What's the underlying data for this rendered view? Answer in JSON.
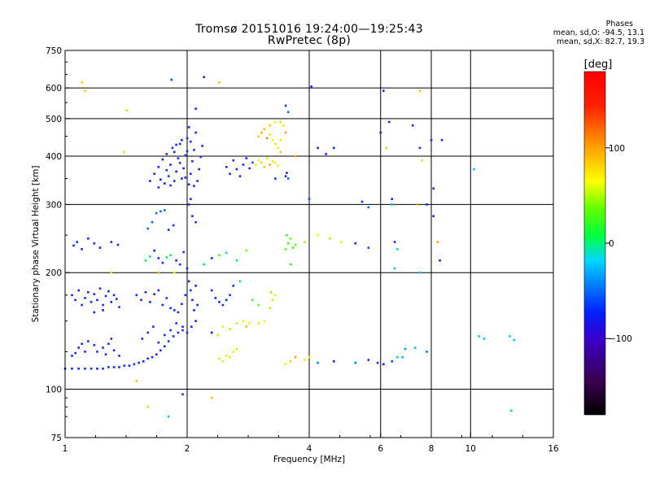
{
  "header": {
    "title_line1": "Tromsø 20151016 19:24:00—19:25:43",
    "title_line2": "RwPretec (8p)"
  },
  "phases_box": {
    "title": "Phases",
    "line_o": "mean, sd,O: -94.5, 13.1",
    "line_x": "mean, sd,X:  82.7, 19.3"
  },
  "colorbar": {
    "unit_label": "[deg]",
    "ticks": [
      {
        "value": 100,
        "label": "100"
      },
      {
        "value": 0,
        "label": "0"
      },
      {
        "value": -100,
        "label": "−100"
      }
    ],
    "range": [
      -180,
      180
    ]
  },
  "chart_data": {
    "type": "scatter",
    "title": "Tromsø 20151016 19:24:00—19:25:43",
    "subtitle": "RwPretec (8p)",
    "xlabel": "Frequency [MHz]",
    "ylabel": "Stationary phase Virtual Height [km]",
    "x_scale": "log2",
    "y_scale": "log",
    "xlim": [
      1,
      16
    ],
    "ylim": [
      75,
      750
    ],
    "grid": true,
    "x_ticks": [
      {
        "v": 1,
        "label": "1"
      },
      {
        "v": 2,
        "label": "2"
      },
      {
        "v": 4,
        "label": "4"
      },
      {
        "v": 6,
        "label": "6"
      },
      {
        "v": 8,
        "label": "8"
      },
      {
        "v": 10,
        "label": "10"
      },
      {
        "v": 16,
        "label": "16"
      }
    ],
    "x_grid": [
      2,
      4,
      6,
      8,
      10
    ],
    "y_ticks": [
      {
        "v": 75,
        "label": "75"
      },
      {
        "v": 100,
        "label": "100"
      },
      {
        "v": 200,
        "label": "200"
      },
      {
        "v": 300,
        "label": "300"
      },
      {
        "v": 400,
        "label": "400"
      },
      {
        "v": 500,
        "label": "500"
      },
      {
        "v": 600,
        "label": "600"
      },
      {
        "v": 750,
        "label": "750"
      }
    ],
    "y_grid": [
      100,
      200,
      300,
      400,
      500,
      600
    ],
    "color_by": "phase [deg]",
    "points": [
      [
        1.0,
        113,
        -100
      ],
      [
        1.04,
        113,
        -100
      ],
      [
        1.08,
        113,
        -100
      ],
      [
        1.12,
        113,
        -100
      ],
      [
        1.16,
        113,
        -100
      ],
      [
        1.2,
        113,
        -100
      ],
      [
        1.24,
        113,
        -100
      ],
      [
        1.28,
        114,
        -100
      ],
      [
        1.32,
        114,
        -100
      ],
      [
        1.36,
        114,
        -100
      ],
      [
        1.4,
        115,
        -100
      ],
      [
        1.44,
        115,
        -100
      ],
      [
        1.48,
        116,
        -100
      ],
      [
        1.52,
        117,
        -100
      ],
      [
        1.56,
        118,
        -100
      ],
      [
        1.6,
        120,
        -100
      ],
      [
        1.64,
        121,
        -100
      ],
      [
        1.68,
        123,
        -100
      ],
      [
        1.72,
        126,
        -100
      ],
      [
        1.76,
        129,
        -100
      ],
      [
        1.8,
        133,
        -100
      ],
      [
        1.85,
        137,
        -100
      ],
      [
        1.9,
        140,
        -100
      ],
      [
        1.95,
        142,
        -100
      ],
      [
        1.04,
        122,
        -100
      ],
      [
        1.06,
        124,
        -100
      ],
      [
        1.08,
        128,
        -100
      ],
      [
        1.1,
        131,
        -100
      ],
      [
        1.12,
        125,
        -100
      ],
      [
        1.14,
        133,
        -100
      ],
      [
        1.18,
        130,
        -100
      ],
      [
        1.2,
        125,
        -100
      ],
      [
        1.24,
        128,
        -100
      ],
      [
        1.26,
        123,
        -100
      ],
      [
        1.28,
        131,
        -100
      ],
      [
        1.32,
        126,
        -100
      ],
      [
        1.3,
        135,
        -95
      ],
      [
        1.36,
        122,
        -100
      ],
      [
        1.04,
        175,
        -100
      ],
      [
        1.06,
        170,
        -100
      ],
      [
        1.08,
        180,
        -100
      ],
      [
        1.1,
        165,
        -100
      ],
      [
        1.12,
        172,
        -100
      ],
      [
        1.14,
        178,
        -100
      ],
      [
        1.16,
        168,
        -100
      ],
      [
        1.18,
        176,
        -100
      ],
      [
        1.2,
        170,
        -100
      ],
      [
        1.22,
        182,
        -100
      ],
      [
        1.24,
        165,
        -100
      ],
      [
        1.26,
        174,
        -100
      ],
      [
        1.28,
        179,
        -100
      ],
      [
        1.3,
        168,
        -100
      ],
      [
        1.32,
        175,
        -100
      ],
      [
        1.34,
        171,
        -100
      ],
      [
        1.36,
        163,
        -100
      ],
      [
        1.18,
        158,
        -100
      ],
      [
        1.24,
        160,
        -110
      ],
      [
        1.05,
        235,
        -100
      ],
      [
        1.07,
        240,
        -100
      ],
      [
        1.1,
        230,
        -100
      ],
      [
        1.14,
        245,
        -100
      ],
      [
        1.18,
        238,
        -100
      ],
      [
        1.22,
        232,
        -100
      ],
      [
        1.3,
        240,
        -100
      ],
      [
        1.35,
        236,
        -100
      ],
      [
        1.5,
        175,
        -100
      ],
      [
        1.54,
        170,
        -100
      ],
      [
        1.58,
        178,
        -100
      ],
      [
        1.62,
        168,
        -100
      ],
      [
        1.66,
        176,
        -100
      ],
      [
        1.7,
        180,
        -100
      ],
      [
        1.74,
        165,
        -100
      ],
      [
        1.78,
        172,
        -100
      ],
      [
        1.82,
        162,
        -100
      ],
      [
        1.86,
        160,
        -100
      ],
      [
        1.9,
        158,
        -100
      ],
      [
        1.94,
        166,
        -100
      ],
      [
        1.55,
        135,
        -100
      ],
      [
        1.6,
        140,
        -100
      ],
      [
        1.65,
        145,
        -100
      ],
      [
        1.7,
        132,
        -100
      ],
      [
        1.76,
        138,
        -100
      ],
      [
        1.82,
        142,
        -100
      ],
      [
        1.88,
        148,
        -100
      ],
      [
        1.95,
        145,
        -100
      ],
      [
        1.58,
        215,
        -10
      ],
      [
        1.62,
        220,
        -20
      ],
      [
        1.66,
        228,
        -100
      ],
      [
        1.7,
        218,
        -100
      ],
      [
        1.74,
        212,
        -100
      ],
      [
        1.78,
        219,
        -10
      ],
      [
        1.82,
        222,
        10
      ],
      [
        1.88,
        215,
        -100
      ],
      [
        1.92,
        210,
        -100
      ],
      [
        1.96,
        226,
        -100
      ],
      [
        1.6,
        260,
        -80
      ],
      [
        1.64,
        270,
        -80
      ],
      [
        1.68,
        285,
        -80
      ],
      [
        1.72,
        288,
        -80
      ],
      [
        1.76,
        290,
        -80
      ],
      [
        1.8,
        258,
        -100
      ],
      [
        1.85,
        265,
        -100
      ],
      [
        1.62,
        345,
        -100
      ],
      [
        1.66,
        360,
        -100
      ],
      [
        1.7,
        375,
        -100
      ],
      [
        1.72,
        348,
        -100
      ],
      [
        1.74,
        392,
        -100
      ],
      [
        1.76,
        340,
        -100
      ],
      [
        1.78,
        405,
        -100
      ],
      [
        1.8,
        355,
        -100
      ],
      [
        1.82,
        380,
        -100
      ],
      [
        1.84,
        420,
        -100
      ],
      [
        1.86,
        345,
        -100
      ],
      [
        1.88,
        365,
        -100
      ],
      [
        1.9,
        395,
        -100
      ],
      [
        1.92,
        430,
        -100
      ],
      [
        1.94,
        350,
        -100
      ],
      [
        1.96,
        372,
        -100
      ],
      [
        1.98,
        402,
        -100
      ],
      [
        2.0,
        445,
        -100
      ],
      [
        2.02,
        338,
        -100
      ],
      [
        2.04,
        360,
        -100
      ],
      [
        2.06,
        388,
        -100
      ],
      [
        2.08,
        415,
        -100
      ],
      [
        2.1,
        460,
        -100
      ],
      [
        2.12,
        345,
        -100
      ],
      [
        2.14,
        370,
        -100
      ],
      [
        2.16,
        398,
        -100
      ],
      [
        2.18,
        425,
        -100
      ],
      [
        1.7,
        332,
        -100
      ],
      [
        1.78,
        368,
        -100
      ],
      [
        1.86,
        410,
        -100
      ],
      [
        1.94,
        440,
        -100
      ],
      [
        2.02,
        475,
        -100
      ],
      [
        1.82,
        336,
        -100
      ],
      [
        1.98,
        352,
        -100
      ],
      [
        2.08,
        335,
        -100
      ],
      [
        1.92,
        384,
        -100
      ],
      [
        2.0,
        412,
        -100
      ],
      [
        1.88,
        428,
        -100
      ],
      [
        2.04,
        436,
        -100
      ],
      [
        2.0,
        205,
        -100
      ],
      [
        2.02,
        190,
        -100
      ],
      [
        2.04,
        180,
        -100
      ],
      [
        2.06,
        170,
        -100
      ],
      [
        2.08,
        160,
        -100
      ],
      [
        2.1,
        150,
        -100
      ],
      [
        2.05,
        145,
        -100
      ],
      [
        2.0,
        140,
        -100
      ],
      [
        2.1,
        185,
        -100
      ],
      [
        2.12,
        165,
        -100
      ],
      [
        1.98,
        175,
        -100
      ],
      [
        2.02,
        300,
        -100
      ],
      [
        2.06,
        280,
        -100
      ],
      [
        2.1,
        270,
        -100
      ],
      [
        2.04,
        310,
        -100
      ],
      [
        2.5,
        375,
        -100
      ],
      [
        2.55,
        360,
        -100
      ],
      [
        2.6,
        390,
        -100
      ],
      [
        2.65,
        370,
        -100
      ],
      [
        2.7,
        355,
        -100
      ],
      [
        2.75,
        380,
        -100
      ],
      [
        2.8,
        395,
        -100
      ],
      [
        2.85,
        372,
        -100
      ],
      [
        2.9,
        385,
        -90
      ],
      [
        2.3,
        180,
        -100
      ],
      [
        2.35,
        172,
        -100
      ],
      [
        2.4,
        168,
        -100
      ],
      [
        2.45,
        165,
        -100
      ],
      [
        2.5,
        170,
        -100
      ],
      [
        2.55,
        175,
        -100
      ],
      [
        2.6,
        185,
        -100
      ],
      [
        2.3,
        140,
        -120
      ],
      [
        2.38,
        138,
        70
      ],
      [
        2.45,
        145,
        80
      ],
      [
        2.55,
        143,
        60
      ],
      [
        2.65,
        148,
        65
      ],
      [
        2.75,
        150,
        90
      ],
      [
        2.85,
        148,
        95
      ],
      [
        3.0,
        148,
        100
      ],
      [
        3.1,
        150,
        90
      ],
      [
        2.4,
        120,
        60
      ],
      [
        2.45,
        118,
        80
      ],
      [
        2.5,
        122,
        90
      ],
      [
        2.55,
        121,
        85
      ],
      [
        2.6,
        125,
        95
      ],
      [
        2.65,
        127,
        70
      ],
      [
        2.3,
        218,
        -100
      ],
      [
        2.4,
        222,
        20
      ],
      [
        2.5,
        225,
        -30
      ],
      [
        2.65,
        215,
        -20
      ],
      [
        2.8,
        228,
        40
      ],
      [
        2.95,
        380,
        80
      ],
      [
        3.0,
        390,
        90
      ],
      [
        3.05,
        385,
        110
      ],
      [
        3.1,
        375,
        120
      ],
      [
        3.15,
        395,
        70
      ],
      [
        3.2,
        380,
        130
      ],
      [
        3.25,
        388,
        100
      ],
      [
        3.3,
        384,
        95
      ],
      [
        3.35,
        378,
        85
      ],
      [
        3.0,
        450,
        110
      ],
      [
        3.05,
        460,
        130
      ],
      [
        3.1,
        470,
        120
      ],
      [
        3.15,
        445,
        140
      ],
      [
        3.2,
        455,
        100
      ],
      [
        3.25,
        440,
        90
      ],
      [
        3.3,
        430,
        110
      ],
      [
        3.35,
        420,
        80
      ],
      [
        3.4,
        410,
        120
      ],
      [
        3.2,
        480,
        110
      ],
      [
        3.3,
        490,
        90
      ],
      [
        3.45,
        480,
        80
      ],
      [
        3.5,
        460,
        130
      ],
      [
        3.4,
        440,
        100
      ],
      [
        3.2,
        162,
        60
      ],
      [
        3.25,
        170,
        70
      ],
      [
        3.3,
        175,
        75
      ],
      [
        3.22,
        178,
        40
      ],
      [
        3.5,
        355,
        -100
      ],
      [
        3.52,
        362,
        -100
      ],
      [
        3.55,
        350,
        -80
      ],
      [
        3.5,
        230,
        30
      ],
      [
        3.55,
        238,
        20
      ],
      [
        3.6,
        245,
        40
      ],
      [
        3.65,
        232,
        20
      ],
      [
        3.7,
        236,
        30
      ],
      [
        3.52,
        250,
        10
      ],
      [
        3.9,
        240,
        60
      ],
      [
        4.2,
        250,
        90
      ],
      [
        4.5,
        245,
        60
      ],
      [
        4.8,
        240,
        100
      ],
      [
        5.2,
        238,
        -100
      ],
      [
        5.6,
        232,
        -90
      ],
      [
        4.0,
        310,
        -90
      ],
      [
        4.2,
        420,
        -100
      ],
      [
        4.6,
        420,
        -100
      ],
      [
        5.4,
        305,
        -100
      ],
      [
        5.6,
        295,
        -80
      ],
      [
        6.0,
        460,
        -100
      ],
      [
        6.2,
        420,
        60
      ],
      [
        6.4,
        300,
        -30
      ],
      [
        6.5,
        240,
        -100
      ],
      [
        6.6,
        230,
        -30
      ],
      [
        7.2,
        480,
        -100
      ],
      [
        7.5,
        420,
        -100
      ],
      [
        7.4,
        300,
        130
      ],
      [
        7.8,
        300,
        -100
      ],
      [
        8.0,
        440,
        -100
      ],
      [
        8.1,
        330,
        -100
      ],
      [
        8.3,
        240,
        130
      ],
      [
        8.4,
        215,
        -100
      ],
      [
        3.5,
        116,
        90
      ],
      [
        3.6,
        118,
        110
      ],
      [
        3.7,
        121,
        130
      ],
      [
        3.9,
        119,
        100
      ],
      [
        4.0,
        121,
        90
      ],
      [
        4.2,
        117,
        -70
      ],
      [
        4.6,
        118,
        -100
      ],
      [
        5.2,
        117,
        -70
      ],
      [
        5.6,
        119,
        -100
      ],
      [
        5.9,
        117,
        -100
      ],
      [
        6.1,
        116,
        -110
      ],
      [
        6.4,
        118,
        -90
      ],
      [
        6.6,
        121,
        -40
      ],
      [
        6.8,
        121,
        -50
      ],
      [
        6.9,
        127,
        -60
      ],
      [
        7.3,
        128,
        -50
      ],
      [
        7.8,
        125,
        -70
      ],
      [
        10.5,
        137,
        -40
      ],
      [
        10.8,
        135,
        -40
      ],
      [
        12.5,
        137,
        -40
      ],
      [
        12.8,
        134,
        -40
      ],
      [
        12.6,
        88,
        -40
      ],
      [
        1.1,
        620,
        110
      ],
      [
        1.12,
        590,
        110
      ],
      [
        1.3,
        200,
        110
      ],
      [
        1.4,
        410,
        60
      ],
      [
        1.42,
        525,
        110
      ],
      [
        1.5,
        105,
        120
      ],
      [
        1.6,
        90,
        110
      ],
      [
        1.7,
        200,
        130
      ],
      [
        1.8,
        85,
        -40
      ],
      [
        1.83,
        630,
        -90
      ],
      [
        1.86,
        200,
        100
      ],
      [
        1.95,
        97,
        -100
      ],
      [
        2.1,
        530,
        -100
      ],
      [
        2.2,
        640,
        -100
      ],
      [
        2.3,
        95,
        120
      ],
      [
        2.4,
        620,
        120
      ],
      [
        2.8,
        145,
        120
      ],
      [
        3.3,
        350,
        -100
      ],
      [
        3.4,
        490,
        60
      ],
      [
        3.5,
        540,
        -100
      ],
      [
        3.55,
        520,
        -80
      ],
      [
        3.6,
        210,
        10
      ],
      [
        3.7,
        400,
        130
      ],
      [
        4.05,
        605,
        -100
      ],
      [
        4.4,
        405,
        -100
      ],
      [
        6.1,
        590,
        -100
      ],
      [
        6.3,
        490,
        -100
      ],
      [
        6.4,
        310,
        -100
      ],
      [
        6.5,
        205,
        -40
      ],
      [
        7.5,
        590,
        120
      ],
      [
        7.5,
        200,
        -40
      ],
      [
        7.6,
        390,
        60
      ],
      [
        8.1,
        280,
        -100
      ],
      [
        8.5,
        440,
        -100
      ],
      [
        10.2,
        370,
        -40
      ],
      [
        2.7,
        190,
        -20
      ],
      [
        2.9,
        170,
        20
      ],
      [
        3.0,
        165,
        30
      ],
      [
        2.2,
        210,
        -20
      ]
    ]
  }
}
